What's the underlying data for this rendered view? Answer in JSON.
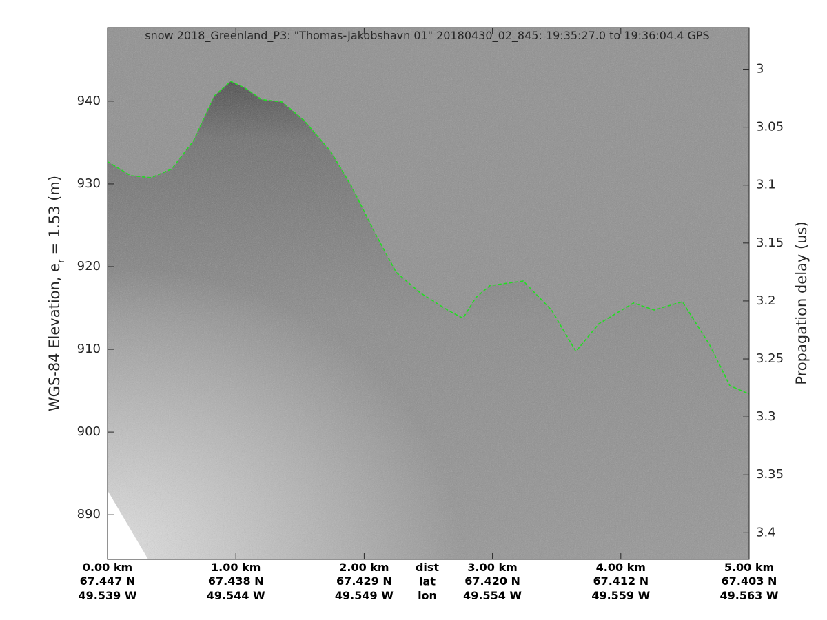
{
  "chart_data": {
    "type": "line",
    "title": "snow 2018_Greenland_P3: \"Thomas-Jakobshavn 01\"  20180430_02_845: 19:35:27.0 to 19:36:04.4 GPS",
    "ylabel": [
      "WGS-84 Elevation, e",
      "r",
      " = 1.53 (m)"
    ],
    "y2label": "Propagation delay (us)",
    "xlim": [
      0,
      5
    ],
    "xticks": [
      {
        "value": 0,
        "label": "0.00 km"
      },
      {
        "value": 1,
        "label": "1.00 km"
      },
      {
        "value": 2,
        "label": "2.00 km"
      },
      {
        "value": 3,
        "label": "3.00 km"
      },
      {
        "value": 4,
        "label": "4.00 km"
      },
      {
        "value": 5,
        "label": "5.00 km"
      }
    ],
    "lat_labels": [
      "67.447 N",
      "67.438 N",
      "67.429 N",
      "67.420 N",
      "67.412 N",
      "67.403 N"
    ],
    "lon_labels": [
      "49.539 W",
      "49.544 W",
      "49.549 W",
      "49.554 W",
      "49.559 W",
      "49.563 W"
    ],
    "row_labels": [
      "dist",
      "lat",
      "lon"
    ],
    "ylim": [
      884.6,
      948.9
    ],
    "yticks": [
      890,
      900,
      910,
      920,
      930,
      940
    ],
    "y2lim": [
      3.423,
      2.964
    ],
    "y2ticks": [
      3,
      3.05,
      3.1,
      3.15,
      3.2,
      3.25,
      3.3,
      3.35,
      3.4
    ],
    "series": [
      {
        "color": "#22dd22",
        "x": [
          0,
          0.18,
          0.34,
          0.5,
          0.67,
          0.83,
          0.96,
          1.07,
          1.2,
          1.36,
          1.53,
          1.74,
          1.9,
          2.09,
          2.25,
          2.44,
          2.65,
          2.77,
          2.87,
          2.98,
          3.24,
          3.46,
          3.65,
          3.83,
          4.1,
          4.26,
          4.48,
          4.69,
          4.85,
          5
        ],
        "values": [
          932.7,
          931.0,
          930.75,
          931.8,
          935.2,
          940.6,
          942.4,
          941.6,
          940.2,
          939.9,
          937.7,
          933.9,
          929.75,
          923.9,
          919.3,
          916.8,
          914.75,
          913.75,
          916.25,
          917.7,
          918.25,
          914.75,
          909.75,
          913.1,
          915.6,
          914.75,
          915.75,
          910.6,
          905.6,
          904.6
        ]
      }
    ]
  }
}
